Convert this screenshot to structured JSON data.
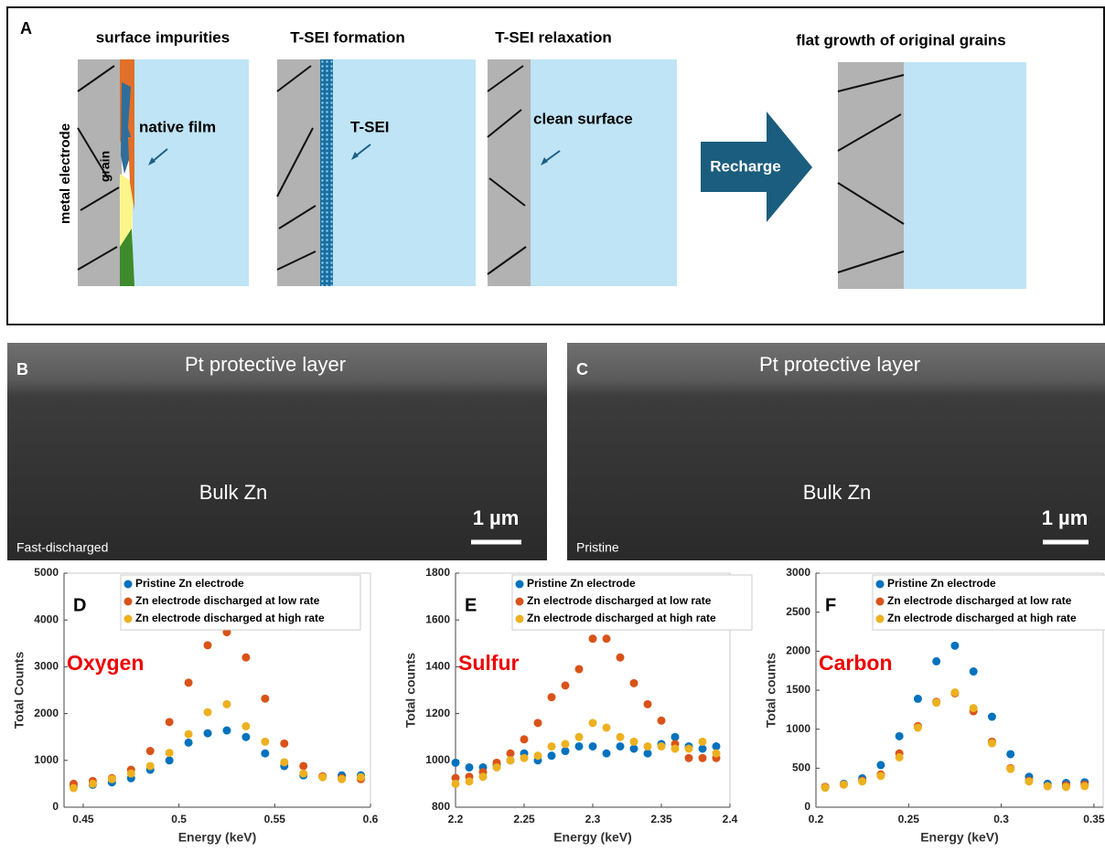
{
  "panel_a": {
    "label": "A",
    "steps": [
      "surface impurities",
      "T-SEI formation",
      "T-SEI relaxation",
      "flat growth of original grains"
    ],
    "metal_electrode": "metal electrode",
    "grain": "grain",
    "native_film": "native film",
    "t_sei": "T-SEI",
    "clean_surface": "clean surface",
    "arrow": "Recharge"
  },
  "panel_b": {
    "label": "B",
    "top": "Pt protective layer",
    "bulk": "Bulk Zn",
    "scale": "1 µm",
    "condition": "Fast-discharged"
  },
  "panel_c": {
    "label": "C",
    "top": "Pt protective layer",
    "bulk": "Bulk Zn",
    "scale": "1 µm",
    "condition": "Pristine"
  },
  "chart_data": [
    {
      "type": "scatter",
      "label": "D",
      "annotation": "Oxygen",
      "xlabel": "Energy (keV)",
      "ylabel": "Total Counts",
      "x": [
        0.445,
        0.455,
        0.465,
        0.475,
        0.485,
        0.495,
        0.505,
        0.515,
        0.525,
        0.535,
        0.545,
        0.555,
        0.565,
        0.575,
        0.585,
        0.595
      ],
      "series": [
        {
          "name": "Pristine Zn electrode",
          "color": "#0072bd",
          "values": [
            450,
            480,
            530,
            620,
            800,
            1000,
            1380,
            1580,
            1640,
            1500,
            1150,
            880,
            680,
            660,
            680,
            680
          ]
        },
        {
          "name": "Zn electrode discharged at low rate",
          "color": "#d95319",
          "values": [
            500,
            560,
            620,
            800,
            1200,
            1820,
            2660,
            3460,
            3740,
            3200,
            2320,
            1360,
            880,
            660,
            620,
            600
          ]
        },
        {
          "name": "Zn electrode discharged at high rate",
          "color": "#edb120",
          "values": [
            410,
            500,
            600,
            720,
            880,
            1160,
            1560,
            2030,
            2200,
            1730,
            1400,
            960,
            720,
            640,
            600,
            640
          ]
        }
      ],
      "xlim": [
        0.44,
        0.6
      ],
      "ylim": [
        0,
        5000
      ],
      "xticks": [
        0.45,
        0.5,
        0.55,
        0.6
      ],
      "yticks": [
        0,
        1000,
        2000,
        3000,
        4000,
        5000
      ]
    },
    {
      "type": "scatter",
      "label": "E",
      "annotation": "Sulfur",
      "xlabel": "Energy (keV)",
      "ylabel": "Total counts",
      "x": [
        2.2,
        2.21,
        2.22,
        2.23,
        2.24,
        2.25,
        2.26,
        2.27,
        2.28,
        2.29,
        2.3,
        2.31,
        2.32,
        2.33,
        2.34,
        2.35,
        2.36,
        2.37,
        2.38,
        2.39
      ],
      "series": [
        {
          "name": "Pristine Zn electrode",
          "color": "#0072bd",
          "values": [
            990,
            970,
            970,
            980,
            1000,
            1030,
            1000,
            1020,
            1040,
            1060,
            1060,
            1030,
            1060,
            1050,
            1030,
            1070,
            1100,
            1060,
            1050,
            1060
          ]
        },
        {
          "name": "Zn electrode discharged at low rate",
          "color": "#d95319",
          "values": [
            925,
            930,
            950,
            990,
            1030,
            1090,
            1160,
            1270,
            1320,
            1390,
            1520,
            1520,
            1440,
            1330,
            1240,
            1170,
            1070,
            1010,
            1010,
            1010
          ]
        },
        {
          "name": "Zn electrode discharged at high rate",
          "color": "#edb120",
          "values": [
            900,
            910,
            930,
            970,
            1000,
            1010,
            1020,
            1060,
            1070,
            1100,
            1160,
            1140,
            1100,
            1080,
            1060,
            1060,
            1050,
            1050,
            1080,
            1030
          ]
        }
      ],
      "xlim": [
        2.2,
        2.4
      ],
      "ylim": [
        800,
        1800
      ],
      "xticks": [
        2.2,
        2.25,
        2.3,
        2.35,
        2.4
      ],
      "yticks": [
        800,
        1000,
        1200,
        1400,
        1600,
        1800
      ]
    },
    {
      "type": "scatter",
      "label": "F",
      "annotation": "Carbon",
      "xlabel": "Energy (keV)",
      "ylabel": "Total counts",
      "x": [
        0.205,
        0.215,
        0.225,
        0.235,
        0.245,
        0.255,
        0.265,
        0.275,
        0.285,
        0.295,
        0.305,
        0.315,
        0.325,
        0.335,
        0.345
      ],
      "series": [
        {
          "name": "Pristine Zn electrode",
          "color": "#0072bd",
          "values": [
            260,
            300,
            370,
            540,
            910,
            1390,
            1870,
            2070,
            1740,
            1160,
            680,
            390,
            300,
            310,
            320
          ]
        },
        {
          "name": "Zn electrode discharged at low rate",
          "color": "#d95319",
          "values": [
            260,
            290,
            340,
            420,
            690,
            1040,
            1350,
            1460,
            1230,
            840,
            500,
            340,
            270,
            280,
            290
          ]
        },
        {
          "name": "Zn electrode discharged at high rate",
          "color": "#edb120",
          "values": [
            250,
            290,
            330,
            400,
            640,
            1020,
            1340,
            1470,
            1270,
            820,
            490,
            330,
            270,
            260,
            270
          ]
        }
      ],
      "xlim": [
        0.2,
        0.355
      ],
      "ylim": [
        0,
        3000
      ],
      "xticks": [
        0.2,
        0.25,
        0.3,
        0.35
      ],
      "yticks": [
        0,
        500,
        1000,
        1500,
        2000,
        2500,
        3000
      ]
    }
  ]
}
